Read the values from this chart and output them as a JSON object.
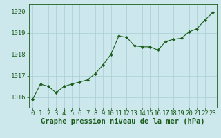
{
  "x": [
    0,
    1,
    2,
    3,
    4,
    5,
    6,
    7,
    8,
    9,
    10,
    11,
    12,
    13,
    14,
    15,
    16,
    17,
    18,
    19,
    20,
    21,
    22,
    23
  ],
  "y": [
    1015.9,
    1016.6,
    1016.5,
    1016.2,
    1016.5,
    1016.6,
    1016.7,
    1016.8,
    1017.1,
    1017.5,
    1018.0,
    1018.85,
    1018.8,
    1018.4,
    1018.35,
    1018.35,
    1018.2,
    1018.6,
    1018.7,
    1018.75,
    1019.05,
    1019.2,
    1019.6,
    1019.95
  ],
  "line_color": "#1a5c1a",
  "marker_color": "#1a5c1a",
  "bg_color": "#cce8ec",
  "grid_color": "#a8cdd4",
  "text_color": "#1a5c1a",
  "xlabel": "Graphe pression niveau de la mer (hPa)",
  "ylim": [
    1015.5,
    1020.35
  ],
  "yticks": [
    1016,
    1017,
    1018,
    1019,
    1020
  ],
  "xticks": [
    0,
    1,
    2,
    3,
    4,
    5,
    6,
    7,
    8,
    9,
    10,
    11,
    12,
    13,
    14,
    15,
    16,
    17,
    18,
    19,
    20,
    21,
    22,
    23
  ],
  "xlabel_fontsize": 7.5,
  "tick_fontsize": 6.5
}
